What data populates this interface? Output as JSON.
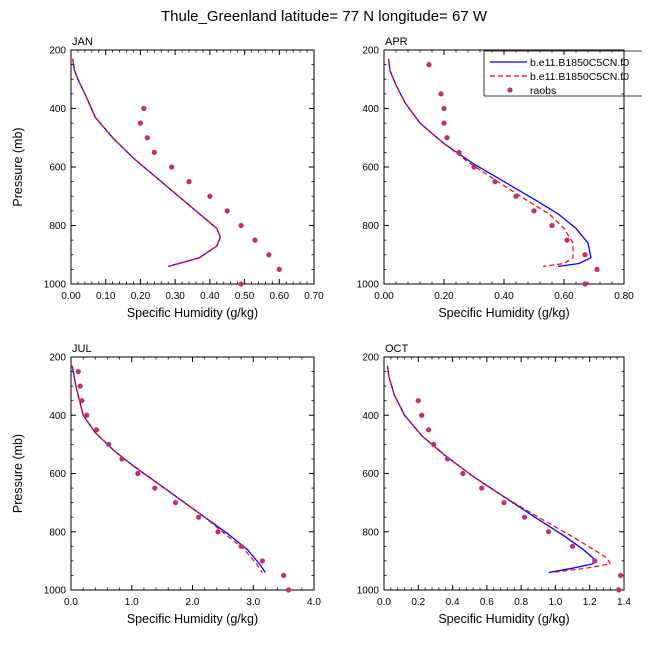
{
  "figure": {
    "title": "Thule_Greenland  latitude= 77 N longitude= 67 W"
  },
  "legend": {
    "entries": [
      {
        "label": "b.e11.B1850C5CN.f0",
        "style": "solid",
        "color": "#0000ff"
      },
      {
        "label": "b.e11.B1850C5CN.f0",
        "style": "dashed",
        "color": "#ff0000"
      },
      {
        "label": "raobs",
        "style": "marker",
        "color": "#c0306b"
      }
    ]
  },
  "colors": {
    "model_solid": "#0000ff",
    "model_dashed": "#ff0000",
    "raobs": "#c0306b"
  },
  "chart_data": [
    {
      "type": "line",
      "panel_label": "JAN",
      "xlabel": "Specific Humidity (g/kg)",
      "ylabel": "Pressure (mb)",
      "xlim": [
        0,
        0.7
      ],
      "ylim": [
        200,
        1000
      ],
      "y_reversed": true,
      "xticks": [
        "0.00",
        "0.10",
        "0.20",
        "0.30",
        "0.40",
        "0.50",
        "0.60",
        "0.70"
      ],
      "yticks": [
        "200",
        "400",
        "600",
        "800",
        "1000"
      ],
      "series": [
        {
          "style": "solid",
          "color": "#0000ff",
          "x": [
            0.005,
            0.01,
            0.02,
            0.04,
            0.07,
            0.12,
            0.18,
            0.25,
            0.32,
            0.38,
            0.42,
            0.43,
            0.42,
            0.37,
            0.28
          ],
          "y": [
            230,
            270,
            300,
            350,
            430,
            500,
            570,
            640,
            710,
            770,
            810,
            840,
            870,
            910,
            940
          ]
        },
        {
          "style": "dashed",
          "color": "#ff0000",
          "x": [
            0.005,
            0.01,
            0.02,
            0.04,
            0.07,
            0.12,
            0.18,
            0.25,
            0.32,
            0.38,
            0.42,
            0.43,
            0.42,
            0.37,
            0.28
          ],
          "y": [
            230,
            270,
            300,
            350,
            430,
            500,
            570,
            640,
            710,
            770,
            810,
            840,
            870,
            910,
            940
          ]
        },
        {
          "style": "marker",
          "color": "#c0306b",
          "x": [
            0.21,
            0.2,
            0.22,
            0.24,
            0.29,
            0.34,
            0.4,
            0.45,
            0.49,
            0.53,
            0.57,
            0.6,
            0.49
          ],
          "y": [
            400,
            450,
            500,
            550,
            600,
            650,
            700,
            750,
            800,
            850,
            900,
            950,
            1000
          ]
        }
      ]
    },
    {
      "type": "line",
      "panel_label": "APR",
      "xlabel": "Specific Humidity (g/kg)",
      "ylabel": "",
      "xlim": [
        0,
        0.8
      ],
      "ylim": [
        200,
        1000
      ],
      "y_reversed": true,
      "xticks": [
        "0.00",
        "0.20",
        "0.40",
        "0.60",
        "0.80"
      ],
      "yticks": [
        "200",
        "400",
        "600",
        "800",
        "1000"
      ],
      "series": [
        {
          "style": "solid",
          "color": "#0000ff",
          "x": [
            0.015,
            0.02,
            0.04,
            0.07,
            0.12,
            0.2,
            0.3,
            0.4,
            0.5,
            0.58,
            0.64,
            0.68,
            0.69,
            0.65,
            0.58
          ],
          "y": [
            230,
            270,
            320,
            380,
            450,
            520,
            590,
            650,
            710,
            760,
            810,
            860,
            910,
            930,
            940
          ]
        },
        {
          "style": "dashed",
          "color": "#ff0000",
          "x": [
            0.015,
            0.02,
            0.04,
            0.07,
            0.12,
            0.2,
            0.29,
            0.38,
            0.47,
            0.55,
            0.6,
            0.63,
            0.63,
            0.6,
            0.53
          ],
          "y": [
            230,
            270,
            320,
            380,
            450,
            520,
            590,
            650,
            710,
            760,
            810,
            860,
            910,
            930,
            940
          ]
        },
        {
          "style": "marker",
          "color": "#c0306b",
          "x": [
            0.15,
            0.19,
            0.2,
            0.2,
            0.21,
            0.25,
            0.3,
            0.37,
            0.44,
            0.5,
            0.56,
            0.61,
            0.67,
            0.71,
            0.67
          ],
          "y": [
            250,
            350,
            400,
            450,
            500,
            550,
            600,
            650,
            700,
            750,
            800,
            850,
            900,
            950,
            1000
          ]
        }
      ]
    },
    {
      "type": "line",
      "panel_label": "JUL",
      "xlabel": "Specific Humidity (g/kg)",
      "ylabel": "Pressure (mb)",
      "xlim": [
        0,
        4.0
      ],
      "ylim": [
        200,
        1000
      ],
      "y_reversed": true,
      "xticks": [
        "0.0",
        "1.0",
        "2.0",
        "3.0",
        "4.0"
      ],
      "yticks": [
        "200",
        "400",
        "600",
        "800",
        "1000"
      ],
      "series": [
        {
          "style": "solid",
          "color": "#0000ff",
          "x": [
            0.02,
            0.08,
            0.2,
            0.4,
            0.7,
            1.0,
            1.4,
            1.8,
            2.2,
            2.6,
            2.9,
            3.1,
            3.2
          ],
          "y": [
            230,
            300,
            400,
            460,
            520,
            570,
            630,
            690,
            750,
            810,
            860,
            910,
            940
          ]
        },
        {
          "style": "dashed",
          "color": "#ff0000",
          "x": [
            0.02,
            0.08,
            0.2,
            0.4,
            0.7,
            1.0,
            1.4,
            1.8,
            2.2,
            2.55,
            2.85,
            3.05,
            3.15
          ],
          "y": [
            230,
            300,
            400,
            460,
            520,
            570,
            630,
            690,
            750,
            810,
            860,
            910,
            940
          ]
        },
        {
          "style": "marker",
          "color": "#c0306b",
          "x": [
            0.12,
            0.15,
            0.18,
            0.26,
            0.42,
            0.62,
            0.84,
            1.1,
            1.38,
            1.72,
            2.1,
            2.42,
            2.8,
            3.15,
            3.5,
            3.58
          ],
          "y": [
            250,
            300,
            350,
            400,
            450,
            500,
            550,
            600,
            650,
            700,
            750,
            800,
            850,
            900,
            950,
            1000
          ]
        }
      ]
    },
    {
      "type": "line",
      "panel_label": "OCT",
      "xlabel": "Specific Humidity (g/kg)",
      "ylabel": "",
      "xlim": [
        0,
        1.4
      ],
      "ylim": [
        200,
        1000
      ],
      "y_reversed": true,
      "xticks": [
        "0.0",
        "0.2",
        "0.4",
        "0.6",
        "0.8",
        "1.0",
        "1.2",
        "1.4"
      ],
      "yticks": [
        "200",
        "400",
        "600",
        "800",
        "1000"
      ],
      "series": [
        {
          "style": "solid",
          "color": "#0000ff",
          "x": [
            0.02,
            0.03,
            0.06,
            0.12,
            0.22,
            0.36,
            0.52,
            0.7,
            0.88,
            1.04,
            1.16,
            1.22,
            1.22,
            1.1,
            0.96
          ],
          "y": [
            230,
            270,
            330,
            400,
            470,
            540,
            610,
            680,
            750,
            810,
            860,
            890,
            910,
            925,
            940
          ]
        },
        {
          "style": "dashed",
          "color": "#ff0000",
          "x": [
            0.02,
            0.03,
            0.06,
            0.12,
            0.22,
            0.36,
            0.52,
            0.7,
            0.9,
            1.08,
            1.22,
            1.3,
            1.32,
            1.18,
            0.98
          ],
          "y": [
            230,
            270,
            330,
            400,
            470,
            540,
            610,
            680,
            750,
            810,
            860,
            890,
            910,
            925,
            940
          ]
        },
        {
          "style": "marker",
          "color": "#c0306b",
          "x": [
            0.2,
            0.22,
            0.26,
            0.29,
            0.37,
            0.46,
            0.57,
            0.7,
            0.82,
            0.96,
            1.1,
            1.23,
            1.38,
            1.37
          ],
          "y": [
            350,
            400,
            450,
            500,
            550,
            600,
            650,
            700,
            750,
            800,
            850,
            900,
            950,
            1000
          ]
        }
      ]
    }
  ]
}
